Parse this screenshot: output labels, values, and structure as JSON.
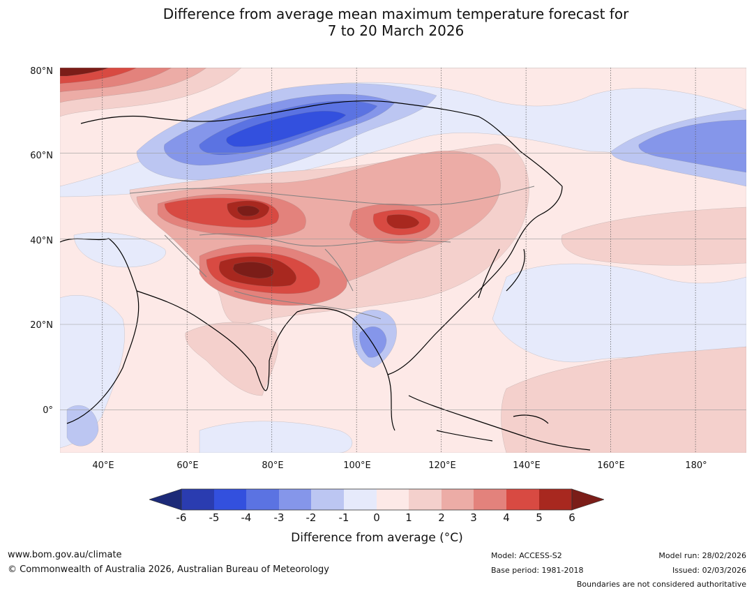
{
  "title": {
    "line1": "Difference from average mean maximum temperature forecast for",
    "line2": "7 to 20 March 2026"
  },
  "map": {
    "latitude_labels": [
      "80°N",
      "60°N",
      "40°N",
      "20°N",
      "0°"
    ],
    "longitude_labels": [
      "40°E",
      "60°E",
      "80°E",
      "100°E",
      "120°E",
      "140°E",
      "160°E",
      "180°"
    ],
    "region": "Asia",
    "extent": {
      "lon": [
        30,
        192
      ],
      "lat": [
        -10,
        80
      ]
    }
  },
  "colorbar": {
    "ticks": [
      "-6",
      "-5",
      "-4",
      "-3",
      "-2",
      "-1",
      "0",
      "1",
      "2",
      "3",
      "4",
      "5",
      "6"
    ],
    "colors": {
      "lt_neg6": "#1c2a78",
      "neg6_neg5": "#2a3cb0",
      "neg5_neg4": "#3350de",
      "neg4_neg3": "#5b73e2",
      "neg3_neg2": "#8596ea",
      "neg2_neg1": "#bcc6f2",
      "neg1_0": "#e6eafb",
      "0_1": "#fde9e7",
      "1_2": "#f4d0cc",
      "2_3": "#ecaca6",
      "3_4": "#e3827c",
      "4_5": "#d84a42",
      "5_6": "#a8281f",
      "gt_6": "#7b1d18"
    },
    "label": "Difference from average (°C)"
  },
  "footer": {
    "website": "www.bom.gov.au/climate",
    "copyright": "© Commonwealth of Australia 2026, Australian Bureau of Meteorology",
    "model": "Model: ACCESS-S2",
    "base_period": "Base period: 1981-2018",
    "model_run": "Model run: 28/02/2026",
    "issued": "Issued: 02/03/2026",
    "disclaimer": "Boundaries are not considered authoritative"
  }
}
